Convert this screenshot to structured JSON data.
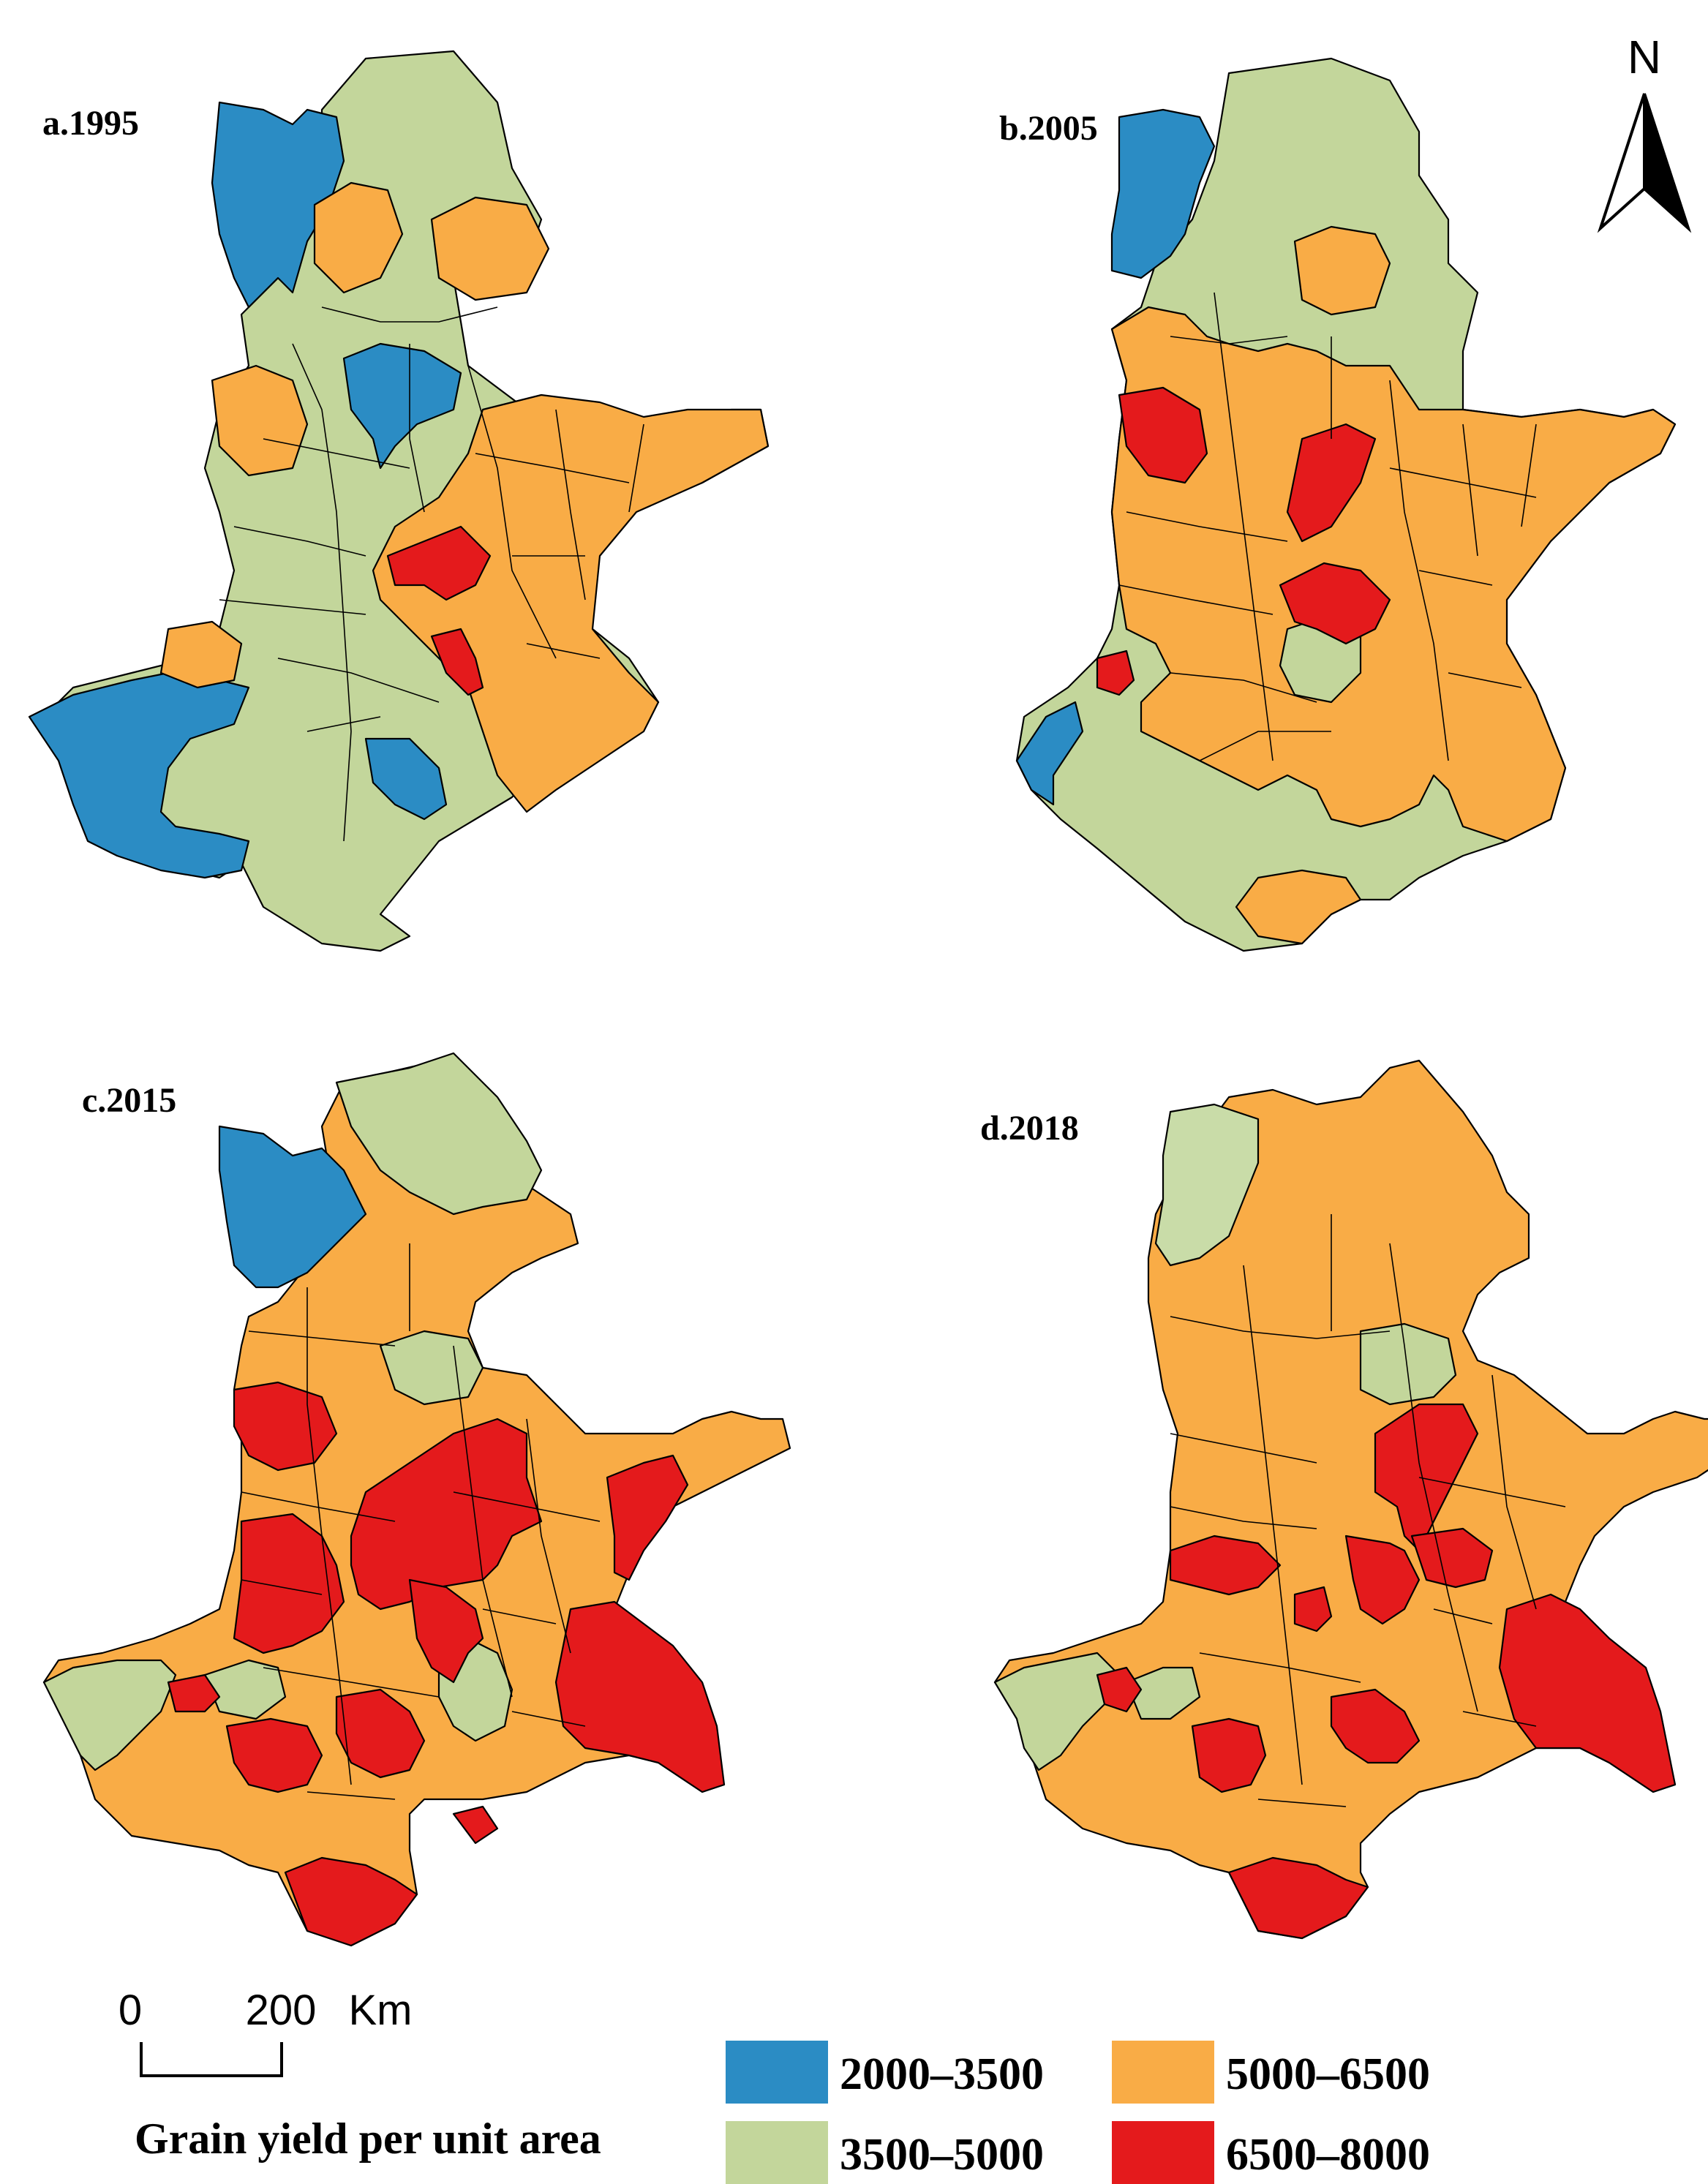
{
  "panels": [
    {
      "label": "a.1995"
    },
    {
      "label": "b.2005"
    },
    {
      "label": "c.2015"
    },
    {
      "label": "d.2018"
    }
  ],
  "north_arrow": {
    "label": "N",
    "icon": "north-arrow-icon"
  },
  "scale_bar": {
    "zero": "0",
    "distance": "200",
    "unit": "Km"
  },
  "legend": {
    "title": "Grain yield per unit area",
    "classes": [
      {
        "label": "2000–3500",
        "color": "#2b8cc4"
      },
      {
        "label": "3500–5000",
        "color": "#c3d69b"
      },
      {
        "label": "5000–6500",
        "color": "#f9ac46"
      },
      {
        "label": "6500–8000",
        "color": "#e41a1c"
      }
    ]
  },
  "colors": {
    "c2000_3500": "#2b8cc4",
    "c3500_5000": "#c3d69b",
    "c5000_6500": "#f9ac46",
    "c6500_8000": "#e41a1c",
    "c3500_5000_light": "#c9dca8"
  }
}
